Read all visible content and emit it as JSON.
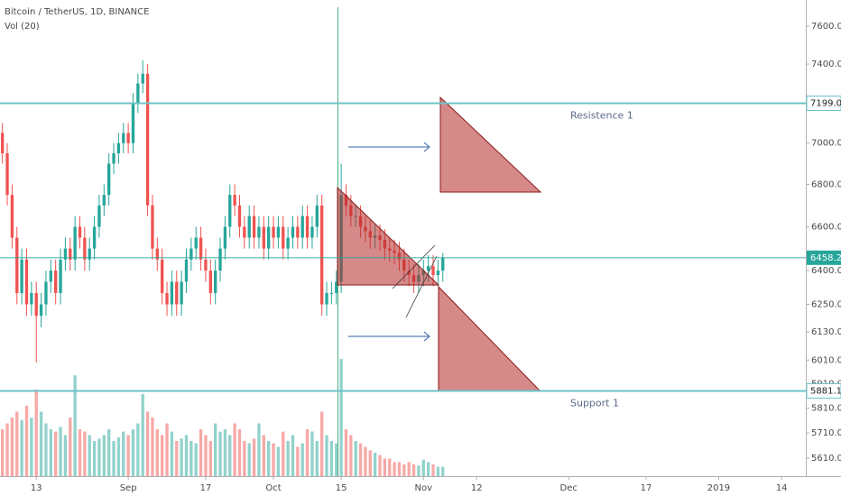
{
  "chart_data": {
    "type": "candlestick",
    "title": "Bitcoin / TetherUS, 1D, BINANCE",
    "volume_label": "Vol (20)",
    "x": [
      0,
      1,
      2,
      3,
      4,
      5,
      6,
      7,
      8,
      9,
      10,
      11,
      12,
      13,
      14,
      15,
      16,
      17,
      18,
      19,
      20,
      21,
      22,
      23,
      24,
      25,
      26,
      27,
      28,
      29,
      30,
      31,
      32,
      33,
      34,
      35,
      36,
      37,
      38,
      39,
      40,
      41,
      42,
      43,
      44,
      45,
      46,
      47,
      48,
      49,
      50,
      51,
      52,
      53,
      54,
      55,
      56,
      57,
      58,
      59,
      60,
      61,
      62,
      63,
      64,
      65,
      66,
      67,
      68,
      69,
      70,
      71,
      72,
      73,
      74,
      75,
      76,
      77,
      78,
      79,
      80,
      81,
      82,
      83,
      84,
      85,
      86,
      87,
      88,
      89,
      90,
      91
    ],
    "open": [
      7050,
      6950,
      6750,
      6550,
      6300,
      6450,
      6250,
      6300,
      6200,
      6250,
      6350,
      6400,
      6300,
      6450,
      6500,
      6450,
      6600,
      6550,
      6450,
      6500,
      6600,
      6700,
      6750,
      6900,
      6950,
      7000,
      7050,
      7000,
      7200,
      7300,
      7350,
      6700,
      6500,
      6450,
      6300,
      6250,
      6350,
      6250,
      6350,
      6450,
      6500,
      6550,
      6450,
      6400,
      6300,
      6400,
      6500,
      6600,
      6750,
      6700,
      6600,
      6550,
      6650,
      6550,
      6600,
      6500,
      6600,
      6550,
      6600,
      6500,
      6550,
      6600,
      6550,
      6650,
      6550,
      6600,
      6700,
      6250,
      6300,
      6300,
      6350,
      6750,
      6700,
      6650,
      6650,
      6600,
      6580,
      6550,
      6560,
      6540,
      6500,
      6490,
      6480,
      6450,
      6400,
      6380,
      6350,
      6380,
      6400,
      6420,
      6380,
      6400
    ],
    "high": [
      7100,
      7000,
      6800,
      6600,
      6500,
      6500,
      6350,
      6350,
      6300,
      6400,
      6450,
      6450,
      6500,
      6550,
      6550,
      6650,
      6650,
      6600,
      6550,
      6650,
      6750,
      6800,
      6950,
      7000,
      7050,
      7100,
      7100,
      7250,
      7350,
      7420,
      7400,
      6750,
      6550,
      6500,
      6350,
      6400,
      6400,
      6400,
      6500,
      6550,
      6600,
      6600,
      6500,
      6450,
      6450,
      6550,
      6650,
      6800,
      6800,
      6750,
      6650,
      6700,
      6700,
      6650,
      6650,
      6650,
      6650,
      6650,
      6650,
      6600,
      6650,
      6650,
      6700,
      6700,
      6650,
      6750,
      6750,
      6350,
      6350,
      6400,
      6900,
      6800,
      6750,
      6700,
      6700,
      6650,
      6630,
      6610,
      6610,
      6590,
      6550,
      6540,
      6530,
      6500,
      6450,
      6430,
      6430,
      6450,
      6470,
      6470,
      6450,
      6480
    ],
    "low": [
      6900,
      6700,
      6500,
      6250,
      6250,
      6200,
      6200,
      6000,
      6150,
      6200,
      6300,
      6250,
      6250,
      6400,
      6400,
      6400,
      6500,
      6400,
      6400,
      6450,
      6550,
      6650,
      6700,
      6850,
      6900,
      6950,
      6950,
      6950,
      7150,
      7250,
      6650,
      6450,
      6400,
      6250,
      6200,
      6200,
      6200,
      6200,
      6300,
      6400,
      6450,
      6400,
      6350,
      6250,
      6250,
      6350,
      6450,
      6550,
      6650,
      6550,
      6500,
      6500,
      6500,
      6500,
      6450,
      6450,
      6500,
      6500,
      6450,
      6450,
      6500,
      6500,
      6500,
      6500,
      6500,
      6550,
      6200,
      6200,
      6250,
      6250,
      6300,
      6650,
      6600,
      6600,
      6550,
      6530,
      6500,
      6500,
      6490,
      6450,
      6440,
      6430,
      6400,
      6350,
      6330,
      6300,
      6300,
      6330,
      6350,
      6330,
      6330,
      6350
    ],
    "close": [
      6950,
      6750,
      6550,
      6300,
      6450,
      6250,
      6300,
      6200,
      6250,
      6350,
      6400,
      6300,
      6450,
      6500,
      6450,
      6600,
      6550,
      6450,
      6500,
      6600,
      6700,
      6750,
      6900,
      6950,
      7000,
      7050,
      7000,
      7200,
      7300,
      7350,
      6700,
      6500,
      6450,
      6300,
      6250,
      6350,
      6250,
      6350,
      6450,
      6500,
      6550,
      6450,
      6400,
      6300,
      6400,
      6500,
      6600,
      6750,
      6700,
      6600,
      6550,
      6650,
      6550,
      6600,
      6500,
      6600,
      6550,
      6600,
      6500,
      6550,
      6600,
      6550,
      6650,
      6550,
      6600,
      6700,
      6250,
      6300,
      6300,
      6350,
      6750,
      6700,
      6650,
      6650,
      6600,
      6580,
      6550,
      6560,
      6540,
      6500,
      6490,
      6480,
      6450,
      6400,
      6380,
      6350,
      6380,
      6400,
      6420,
      6380,
      6400,
      6458.21
    ],
    "volume": [
      40,
      45,
      50,
      55,
      48,
      60,
      50,
      74,
      55,
      45,
      40,
      38,
      42,
      35,
      50,
      86,
      40,
      38,
      35,
      30,
      32,
      35,
      40,
      30,
      33,
      38,
      35,
      40,
      45,
      70,
      55,
      50,
      40,
      35,
      45,
      38,
      30,
      32,
      35,
      30,
      28,
      40,
      35,
      30,
      45,
      38,
      40,
      35,
      45,
      40,
      30,
      28,
      32,
      45,
      35,
      30,
      28,
      25,
      38,
      30,
      35,
      25,
      28,
      40,
      38,
      30,
      55,
      35,
      30,
      28,
      100,
      40,
      35,
      30,
      28,
      25,
      22,
      20,
      18,
      15,
      15,
      12,
      12,
      10,
      12,
      10,
      9,
      14,
      12,
      10,
      8,
      8
    ],
    "volume_lim": [
      0,
      100
    ],
    "up_color": "#26a69a",
    "down_color": "#ef5350",
    "xlim": [
      -0.5,
      166
    ],
    "xticks": [
      {
        "value": 7,
        "label": "13"
      },
      {
        "value": 26,
        "label": "Sep"
      },
      {
        "value": 42,
        "label": "17"
      },
      {
        "value": 56,
        "label": "Oct"
      },
      {
        "value": 70,
        "label": "15"
      },
      {
        "value": 87,
        "label": "Nov"
      },
      {
        "value": 98,
        "label": "12"
      },
      {
        "value": 117,
        "label": "Dec"
      },
      {
        "value": 133,
        "label": "17"
      },
      {
        "value": 148,
        "label": "2019"
      },
      {
        "value": 161,
        "label": "14"
      }
    ],
    "ylim": [
      5539,
      7741
    ],
    "log_scale": true,
    "yticks": [
      {
        "value": 7600,
        "label": "7600.00"
      },
      {
        "value": 7400,
        "label": "7400.00"
      },
      {
        "value": 7000,
        "label": "7000.00"
      },
      {
        "value": 6800,
        "label": "6800.00"
      },
      {
        "value": 6600,
        "label": "6600.00"
      },
      {
        "value": 6400,
        "label": "6400.00"
      },
      {
        "value": 6250,
        "label": "6250.00"
      },
      {
        "value": 6130,
        "label": "6130.00"
      },
      {
        "value": 6010,
        "label": "6010.00"
      },
      {
        "value": 5910,
        "label": "5910.00"
      },
      {
        "value": 5810,
        "label": "5810.00"
      },
      {
        "value": 5710,
        "label": "5710.00"
      },
      {
        "value": 5610,
        "label": "5610.00"
      }
    ],
    "levels": [
      {
        "label": "Resistence 1",
        "value": 7199.06,
        "color": "#6cc3c9"
      },
      {
        "label": "Support 1",
        "value": 5881.14,
        "color": "#6cc3c9"
      }
    ],
    "last_price": 6458.21
  }
}
